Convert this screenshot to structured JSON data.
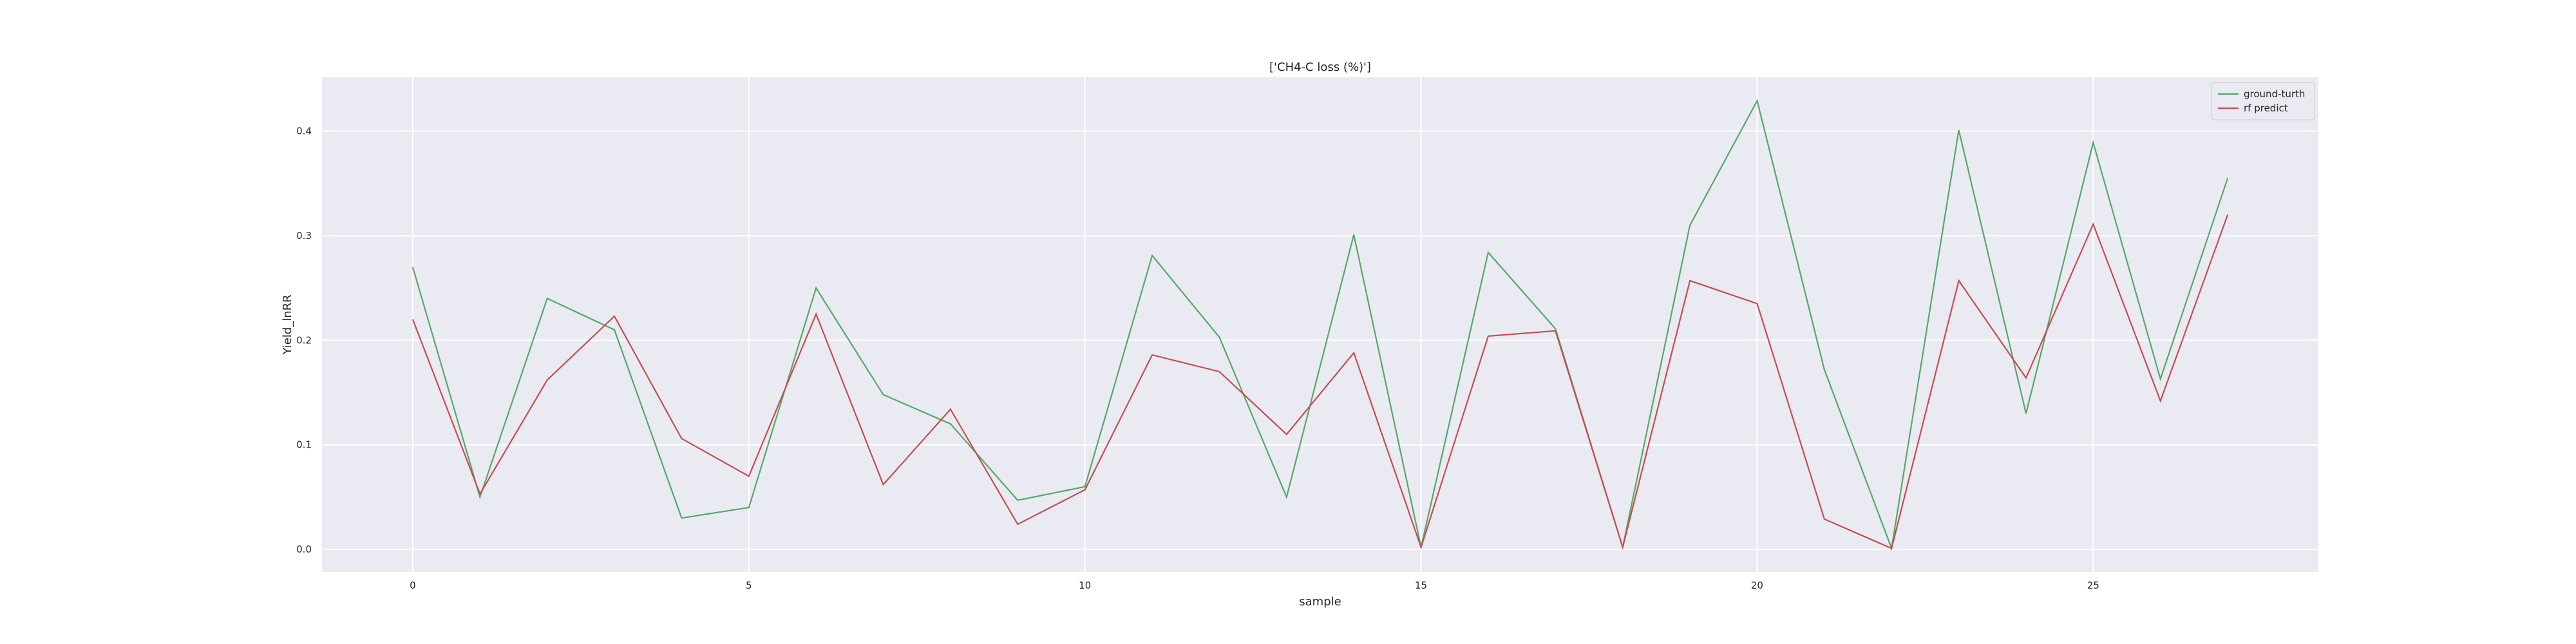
{
  "chart_data": {
    "type": "line",
    "title": "['CH4-C loss (%)']",
    "xlabel": "sample",
    "ylabel": "Yield_lnRR",
    "xlim": [
      -1.35,
      28.35
    ],
    "ylim": [
      -0.0215,
      0.4515
    ],
    "xticks": [
      0,
      5,
      10,
      15,
      20,
      25
    ],
    "yticks": [
      0.0,
      0.1,
      0.2,
      0.3,
      0.4
    ],
    "ytick_labels": [
      "0.0",
      "0.1",
      "0.2",
      "0.3",
      "0.4"
    ],
    "grid": true,
    "legend_position": "top-right",
    "x": [
      0,
      1,
      2,
      3,
      4,
      5,
      6,
      7,
      8,
      9,
      10,
      11,
      12,
      13,
      14,
      15,
      16,
      17,
      18,
      19,
      20,
      21,
      22,
      23,
      24,
      25,
      26,
      27
    ],
    "series": [
      {
        "name": "ground-turth",
        "color": "#55a868",
        "values": [
          0.27,
          0.05,
          0.24,
          0.21,
          0.03,
          0.04,
          0.25,
          0.148,
          0.12,
          0.047,
          0.06,
          0.281,
          0.203,
          0.05,
          0.301,
          0.002,
          0.284,
          0.211,
          0.002,
          0.31,
          0.429,
          0.172,
          0.001,
          0.401,
          0.13,
          0.389,
          0.163,
          0.355
        ]
      },
      {
        "name": "rf predict",
        "color": "#c44e52",
        "values": [
          0.22,
          0.053,
          0.162,
          0.223,
          0.106,
          0.07,
          0.225,
          0.062,
          0.134,
          0.024,
          0.057,
          0.186,
          0.17,
          0.11,
          0.188,
          0.002,
          0.204,
          0.209,
          0.002,
          0.257,
          0.235,
          0.029,
          0.001,
          0.257,
          0.164,
          0.311,
          0.142,
          0.32
        ]
      }
    ]
  }
}
